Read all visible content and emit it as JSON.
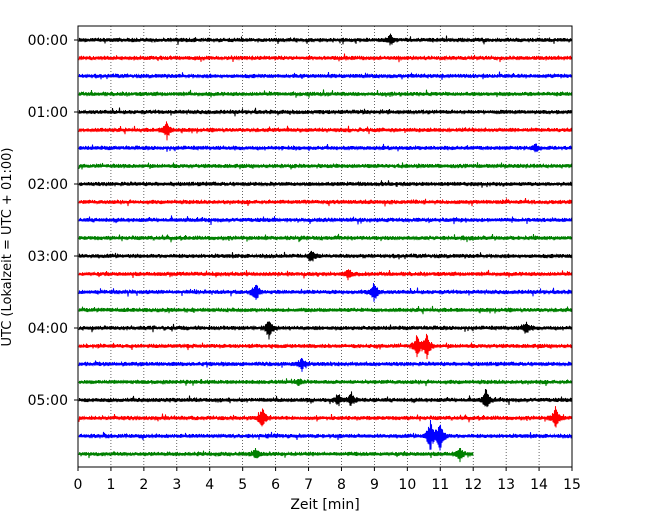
{
  "chart_data": {
    "type": "line",
    "title": "",
    "xlabel": "Zeit  [min]",
    "ylabel": "UTC (Lokalzeit = UTC + 01:00)",
    "xlim": [
      0,
      15
    ],
    "x_ticks": [
      "0",
      "1",
      "2",
      "3",
      "4",
      "5",
      "6",
      "7",
      "8",
      "9",
      "10",
      "11",
      "12",
      "13",
      "14",
      "15"
    ],
    "y_tick_labels": [
      {
        "label": "00:00",
        "trace": 0
      },
      {
        "label": "01:00",
        "trace": 4
      },
      {
        "label": "02:00",
        "trace": 8
      },
      {
        "label": "03:00",
        "trace": 12
      },
      {
        "label": "04:00",
        "trace": 16
      },
      {
        "label": "05:00",
        "trace": 20
      }
    ],
    "grid": "vertical dotted lines at each minute",
    "color_cycle": [
      "#000000",
      "#ff0000",
      "#0000ff",
      "#008000"
    ],
    "trace_interval_minutes": 15,
    "series": [
      {
        "start": "00:00",
        "color": "#000000",
        "end_min": 15,
        "events": [
          {
            "t": 9.5,
            "amp": 0.5
          }
        ]
      },
      {
        "start": "00:15",
        "color": "#ff0000",
        "end_min": 15,
        "events": []
      },
      {
        "start": "00:30",
        "color": "#0000ff",
        "end_min": 15,
        "events": []
      },
      {
        "start": "00:45",
        "color": "#008000",
        "end_min": 15,
        "events": []
      },
      {
        "start": "01:00",
        "color": "#000000",
        "end_min": 15,
        "events": []
      },
      {
        "start": "01:15",
        "color": "#ff0000",
        "end_min": 15,
        "events": [
          {
            "t": 2.7,
            "amp": 0.9
          }
        ]
      },
      {
        "start": "01:30",
        "color": "#0000ff",
        "end_min": 15,
        "events": [
          {
            "t": 13.9,
            "amp": 0.4
          }
        ]
      },
      {
        "start": "01:45",
        "color": "#008000",
        "end_min": 15,
        "events": []
      },
      {
        "start": "02:00",
        "color": "#000000",
        "end_min": 15,
        "events": []
      },
      {
        "start": "02:15",
        "color": "#ff0000",
        "end_min": 15,
        "events": []
      },
      {
        "start": "02:30",
        "color": "#0000ff",
        "end_min": 15,
        "events": []
      },
      {
        "start": "02:45",
        "color": "#008000",
        "end_min": 15,
        "events": []
      },
      {
        "start": "03:00",
        "color": "#000000",
        "end_min": 15,
        "events": [
          {
            "t": 7.1,
            "amp": 0.6
          }
        ]
      },
      {
        "start": "03:15",
        "color": "#ff0000",
        "end_min": 15,
        "events": [
          {
            "t": 8.2,
            "amp": 0.5
          }
        ]
      },
      {
        "start": "03:30",
        "color": "#0000ff",
        "end_min": 15,
        "events": [
          {
            "t": 5.4,
            "amp": 1.0
          },
          {
            "t": 9.0,
            "amp": 1.0
          }
        ]
      },
      {
        "start": "03:45",
        "color": "#008000",
        "end_min": 15,
        "events": []
      },
      {
        "start": "04:00",
        "color": "#000000",
        "end_min": 15,
        "events": [
          {
            "t": 5.8,
            "amp": 1.0
          },
          {
            "t": 13.6,
            "amp": 0.6
          }
        ]
      },
      {
        "start": "04:15",
        "color": "#ff0000",
        "end_min": 15,
        "events": [
          {
            "t": 10.3,
            "amp": 1.1
          },
          {
            "t": 10.6,
            "amp": 1.3
          }
        ]
      },
      {
        "start": "04:30",
        "color": "#0000ff",
        "end_min": 15,
        "events": [
          {
            "t": 6.8,
            "amp": 0.6
          }
        ]
      },
      {
        "start": "04:45",
        "color": "#008000",
        "end_min": 15,
        "events": [
          {
            "t": 6.7,
            "amp": 0.3
          }
        ]
      },
      {
        "start": "05:00",
        "color": "#000000",
        "end_min": 15,
        "events": [
          {
            "t": 7.9,
            "amp": 0.6
          },
          {
            "t": 8.3,
            "amp": 0.7
          },
          {
            "t": 12.4,
            "amp": 1.0
          }
        ]
      },
      {
        "start": "05:15",
        "color": "#ff0000",
        "end_min": 15,
        "events": [
          {
            "t": 5.6,
            "amp": 1.0
          },
          {
            "t": 14.5,
            "amp": 1.1
          }
        ]
      },
      {
        "start": "05:30",
        "color": "#0000ff",
        "end_min": 15,
        "events": [
          {
            "t": 10.7,
            "amp": 1.6
          },
          {
            "t": 11.0,
            "amp": 1.7
          }
        ]
      },
      {
        "start": "05:45",
        "color": "#008000",
        "end_min": 12,
        "events": [
          {
            "t": 5.4,
            "amp": 0.5
          },
          {
            "t": 11.6,
            "amp": 0.6
          }
        ]
      }
    ]
  }
}
